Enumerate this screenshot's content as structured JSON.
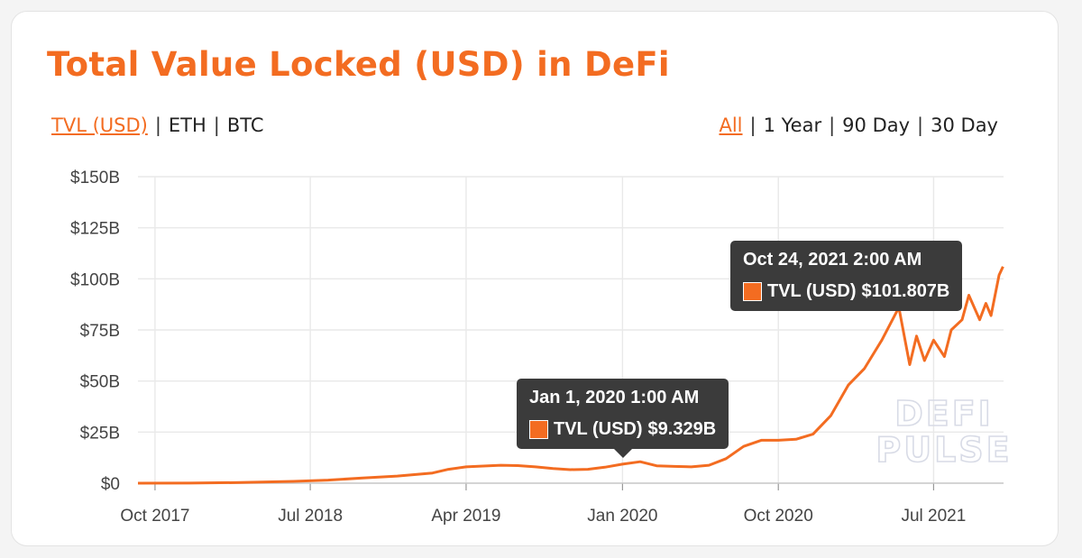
{
  "title": "Total Value Locked (USD) in DeFi",
  "metric_options": [
    {
      "label": "TVL (USD)",
      "selected": true
    },
    {
      "label": "ETH",
      "selected": false
    },
    {
      "label": "BTC",
      "selected": false
    }
  ],
  "range_options": [
    {
      "label": "All",
      "selected": true
    },
    {
      "label": "1 Year",
      "selected": false
    },
    {
      "label": "90 Day",
      "selected": false
    },
    {
      "label": "30 Day",
      "selected": false
    }
  ],
  "separator": "|",
  "watermark": {
    "line1": "DEFI",
    "line2": "PULSE"
  },
  "colors": {
    "accent": "#f36c21",
    "tooltip_bg": "#3b3b3b",
    "grid": "#e9e9e9"
  },
  "tooltips": [
    {
      "date": "Jan 1, 2020 1:00 AM",
      "series": "TVL (USD)",
      "value": "$9.329B"
    },
    {
      "date": "Oct 24, 2021 2:00 AM",
      "series": "TVL (USD)",
      "value": "$101.807B"
    }
  ],
  "chart_data": {
    "type": "area",
    "title": "Total Value Locked (USD) in DeFi",
    "xlabel": "",
    "ylabel": "",
    "ylim": [
      0,
      150
    ],
    "y_unit": "billion USD",
    "y_ticks": [
      0,
      25,
      50,
      75,
      100,
      125,
      150
    ],
    "y_tick_labels": [
      "$0",
      "$25B",
      "$50B",
      "$75B",
      "$100B",
      "$125B",
      "$150B"
    ],
    "xlim": [
      "2017-09-01",
      "2021-11-01"
    ],
    "x_ticks": [
      "2017-10-01",
      "2018-07-01",
      "2019-04-01",
      "2020-01-01",
      "2020-10-01",
      "2021-07-01"
    ],
    "x_tick_labels": [
      "Oct 2017",
      "Jul 2018",
      "Apr 2019",
      "Jan 2020",
      "Oct 2020",
      "Jul 2021"
    ],
    "grid": true,
    "legend": "none",
    "series": [
      {
        "name": "TVL (USD)",
        "color": "#f36c21",
        "points": [
          [
            "2017-09-01",
            0.0
          ],
          [
            "2017-12-01",
            0.05
          ],
          [
            "2018-03-01",
            0.3
          ],
          [
            "2018-06-01",
            0.9
          ],
          [
            "2018-08-01",
            1.5
          ],
          [
            "2018-10-01",
            2.5
          ],
          [
            "2018-12-01",
            3.5
          ],
          [
            "2019-02-01",
            5.0
          ],
          [
            "2019-03-01",
            6.8
          ],
          [
            "2019-04-01",
            8.0
          ],
          [
            "2019-05-01",
            8.4
          ],
          [
            "2019-06-01",
            8.8
          ],
          [
            "2019-07-01",
            8.6
          ],
          [
            "2019-08-01",
            8.0
          ],
          [
            "2019-09-01",
            7.2
          ],
          [
            "2019-10-01",
            6.6
          ],
          [
            "2019-11-01",
            6.8
          ],
          [
            "2019-12-01",
            7.8
          ],
          [
            "2020-01-01",
            9.33
          ],
          [
            "2020-02-01",
            10.5
          ],
          [
            "2020-03-01",
            8.5
          ],
          [
            "2020-04-01",
            8.2
          ],
          [
            "2020-05-01",
            8.0
          ],
          [
            "2020-06-01",
            8.8
          ],
          [
            "2020-07-01",
            12.0
          ],
          [
            "2020-08-01",
            18.0
          ],
          [
            "2020-09-01",
            21.0
          ],
          [
            "2020-10-01",
            21.0
          ],
          [
            "2020-11-01",
            21.5
          ],
          [
            "2020-12-01",
            24.0
          ],
          [
            "2021-01-01",
            33.0
          ],
          [
            "2021-02-01",
            48.0
          ],
          [
            "2021-03-01",
            56.0
          ],
          [
            "2021-04-01",
            70.0
          ],
          [
            "2021-05-01",
            86.0
          ],
          [
            "2021-05-20",
            58.0
          ],
          [
            "2021-06-01",
            72.0
          ],
          [
            "2021-06-15",
            60.0
          ],
          [
            "2021-07-01",
            70.0
          ],
          [
            "2021-07-20",
            62.0
          ],
          [
            "2021-08-01",
            75.0
          ],
          [
            "2021-08-20",
            80.0
          ],
          [
            "2021-09-01",
            92.0
          ],
          [
            "2021-09-20",
            80.0
          ],
          [
            "2021-10-01",
            88.0
          ],
          [
            "2021-10-10",
            82.0
          ],
          [
            "2021-10-24",
            101.8
          ],
          [
            "2021-10-31",
            106.0
          ]
        ]
      }
    ]
  }
}
